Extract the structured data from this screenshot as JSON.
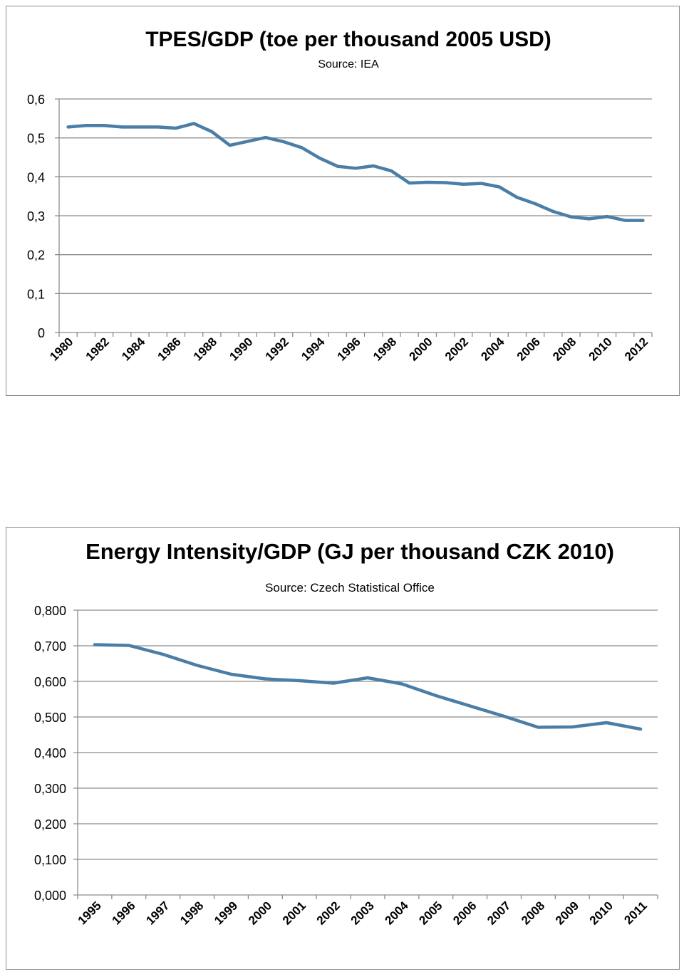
{
  "chart_data": [
    {
      "type": "line",
      "title": "TPES/GDP (toe per thousand 2005 USD)",
      "subtitle": "Source:  IEA",
      "xlabel": "",
      "ylabel": "",
      "ylim": [
        0,
        0.6
      ],
      "y_ticks": [
        "0",
        "0,1",
        "0,2",
        "0,3",
        "0,4",
        "0,5",
        "0,6"
      ],
      "x_tick_labels": [
        "1980",
        "1982",
        "1984",
        "1986",
        "1988",
        "1990",
        "1992",
        "1994",
        "1996",
        "1998",
        "2000",
        "2002",
        "2004",
        "2006",
        "2008",
        "2010",
        "2012"
      ],
      "grid": true,
      "legend": "none",
      "color": "#4a7ea7",
      "x": [
        1980,
        1981,
        1982,
        1983,
        1984,
        1985,
        1986,
        1987,
        1988,
        1989,
        1990,
        1991,
        1992,
        1993,
        1994,
        1995,
        1996,
        1997,
        1998,
        1999,
        2000,
        2001,
        2002,
        2003,
        2004,
        2005,
        2006,
        2007,
        2008,
        2009,
        2010,
        2011,
        2012
      ],
      "values": [
        0.528,
        0.532,
        0.532,
        0.528,
        0.528,
        0.528,
        0.525,
        0.537,
        0.516,
        0.481,
        0.491,
        0.501,
        0.49,
        0.475,
        0.448,
        0.427,
        0.422,
        0.428,
        0.415,
        0.384,
        0.386,
        0.385,
        0.381,
        0.383,
        0.374,
        0.347,
        0.331,
        0.311,
        0.297,
        0.292,
        0.298,
        0.288,
        0.288
      ]
    },
    {
      "type": "line",
      "title": "Energy Intensity/GDP (GJ per thousand CZK 2010)",
      "subtitle": "Source: Czech Statistical Office",
      "xlabel": "",
      "ylabel": "",
      "ylim": [
        0,
        0.8
      ],
      "y_ticks": [
        "0,000",
        "0,100",
        "0,200",
        "0,300",
        "0,400",
        "0,500",
        "0,600",
        "0,700",
        "0,800"
      ],
      "x_tick_labels": [
        "1995",
        "1996",
        "1997",
        "1998",
        "1999",
        "2000",
        "2001",
        "2002",
        "2003",
        "2004",
        "2005",
        "2006",
        "2007",
        "2008",
        "2009",
        "2010",
        "2011"
      ],
      "grid": true,
      "legend": "none",
      "color": "#4a7ea7",
      "x": [
        "1995",
        "1996",
        "1997",
        "1998",
        "1999",
        "2000",
        "2001",
        "2002",
        "2003",
        "2004",
        "2005",
        "2006",
        "2007",
        "2008",
        "2009",
        "2010",
        "2011"
      ],
      "values": [
        0.703,
        0.701,
        0.676,
        0.645,
        0.62,
        0.607,
        0.602,
        0.595,
        0.61,
        0.593,
        0.56,
        0.531,
        0.502,
        0.471,
        0.472,
        0.484,
        0.466
      ]
    }
  ]
}
